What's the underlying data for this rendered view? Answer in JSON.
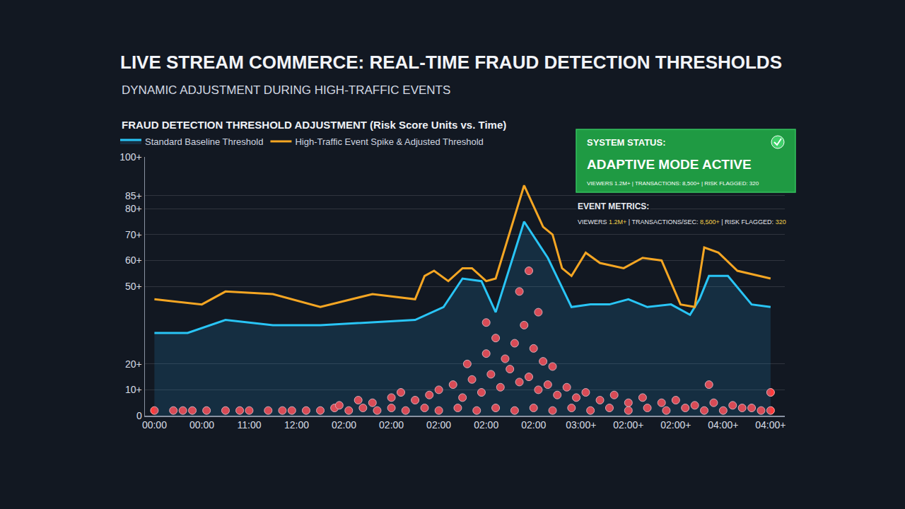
{
  "chart_data": {
    "type": "line",
    "title": "LIVE STREAM COMMERCE: REAL-TIME FRAUD DETECTION THRESHOLDS",
    "subtitle": "DYNAMIC ADJUSTMENT DURING HIGH-TRAFFIC EVENTS",
    "panel_title": "FRAUD DETECTION THRESHOLD ADJUSTMENT (Risk Score Units vs. Time)",
    "status": {
      "label": "SYSTEM STATUS:",
      "value": "ADAPTIVE MODE ACTIVE",
      "details": "VIEWERS 1.2M+ | TRANSACTIONS: 8,500+ | RISK FLAGGED: 320"
    },
    "event_metrics": {
      "label": "EVENT METRICS:",
      "details": "VIEWERS 1.2M+ | TRANSACTIONS/SEC: 8,500+ | RISK FLAGGED: 320"
    },
    "xlim": [
      -0.2,
      13.3
    ],
    "xticks": [
      {
        "value": 0,
        "label": "00:00"
      },
      {
        "value": 1,
        "label": "00:00"
      },
      {
        "value": 2,
        "label": "11:00"
      },
      {
        "value": 3,
        "label": "12:00"
      },
      {
        "value": 4,
        "label": "02:00"
      },
      {
        "value": 5,
        "label": "02:00"
      },
      {
        "value": 6,
        "label": "02:00"
      },
      {
        "value": 7,
        "label": "02:00"
      },
      {
        "value": 8,
        "label": "02:00"
      },
      {
        "value": 9,
        "label": "03:00+"
      },
      {
        "value": 10,
        "label": "02:00+"
      },
      {
        "value": 11,
        "label": "02:00+"
      },
      {
        "value": 12,
        "label": "04:00+"
      },
      {
        "value": 13,
        "label": "04:00+"
      }
    ],
    "ylim": [
      0,
      100
    ],
    "yticks": [
      0,
      {
        "value": 10,
        "label": "10+"
      },
      {
        "value": 20,
        "label": "20+"
      },
      {
        "value": 50,
        "label": "50+"
      },
      {
        "value": 60,
        "label": "60+"
      },
      {
        "value": 70,
        "label": "70+"
      },
      {
        "value": 80,
        "label": "80+"
      },
      {
        "value": 85,
        "label": "85+"
      },
      {
        "value": 100,
        "label": "100+"
      }
    ],
    "grid": true,
    "legend": "top left",
    "series": [
      {
        "name": "Standard Baseline Threshold",
        "color": "#29c5f6",
        "type": "line",
        "x": [
          0,
          0.7,
          1.5,
          2.5,
          3.5,
          4.5,
          5.5,
          6.1,
          6.5,
          6.9,
          7.2,
          7.8,
          8.3,
          8.8,
          9.2,
          9.6,
          10.0,
          10.4,
          10.9,
          11.3,
          11.5,
          11.7,
          12.1,
          12.6,
          13.0
        ],
        "values": [
          32,
          32,
          37,
          35,
          35,
          36,
          37,
          42,
          53,
          52,
          40,
          75,
          61,
          42,
          43,
          43,
          45,
          42,
          43,
          39,
          45,
          54,
          54,
          43,
          42
        ]
      },
      {
        "name": "High-Traffic Event Spike & Adjusted Threshold",
        "color": "#f5a623",
        "type": "line",
        "x": [
          0,
          1.0,
          1.5,
          2.5,
          3.5,
          4.6,
          5.5,
          5.7,
          5.9,
          6.2,
          6.5,
          6.7,
          7.0,
          7.2,
          7.8,
          8.2,
          8.4,
          8.6,
          8.8,
          9.1,
          9.4,
          9.9,
          10.3,
          10.7,
          11.1,
          11.4,
          11.6,
          11.9,
          12.3,
          13.0
        ],
        "values": [
          45,
          43,
          48,
          47,
          42,
          47,
          45,
          54,
          56,
          52,
          57,
          57,
          52,
          53,
          89,
          73,
          70,
          57,
          54,
          63,
          59,
          57,
          61,
          60,
          43,
          42,
          65,
          63,
          56,
          53
        ]
      },
      {
        "color": "#ff3b3b",
        "type": "scatter",
        "marker": "circle",
        "x": [
          0,
          0.4,
          0.6,
          0.8,
          1.1,
          1.5,
          1.8,
          2.0,
          2.4,
          2.7,
          2.9,
          3.2,
          3.5,
          3.8,
          4.1,
          4.4,
          4.7,
          5.0,
          5.3,
          5.7,
          6.0,
          6.4,
          6.8,
          7.2,
          7.6,
          8.0,
          8.4,
          8.8,
          9.2,
          9.6,
          10.0,
          10.4,
          10.8,
          11.2,
          11.6,
          12.0,
          12.4,
          12.8,
          13.0,
          3.9,
          4.3,
          4.6,
          5.0,
          5.2,
          5.5,
          5.8,
          6.0,
          6.3,
          6.5,
          6.7,
          6.9,
          7.1,
          7.3,
          7.5,
          7.7,
          7.9,
          8.1,
          8.3,
          8.5,
          8.7,
          8.9,
          9.1,
          9.4,
          9.7,
          10.0,
          10.3,
          10.7,
          11.0,
          11.4,
          11.8,
          12.2,
          12.6,
          13.0,
          6.6,
          7.0,
          7.2,
          7.4,
          7.6,
          7.8,
          8.0,
          8.2,
          8.4,
          7.0,
          7.7,
          7.9,
          8.1,
          11.7
        ],
        "values": [
          2,
          2,
          2,
          2,
          2,
          2,
          2,
          2,
          2,
          2,
          2,
          2,
          2,
          3,
          2,
          3,
          2,
          3,
          2,
          3,
          2,
          3,
          2,
          3,
          2,
          3,
          2,
          3,
          2,
          3,
          2,
          3,
          2,
          3,
          2,
          2,
          3,
          2,
          2,
          4,
          6,
          5,
          7,
          9,
          6,
          8,
          10,
          12,
          7,
          14,
          9,
          16,
          11,
          18,
          13,
          15,
          10,
          12,
          8,
          11,
          7,
          9,
          6,
          8,
          5,
          7,
          5,
          6,
          4,
          5,
          4,
          3,
          9,
          20,
          24,
          30,
          22,
          28,
          35,
          26,
          21,
          19,
          36,
          48,
          56,
          40,
          12
        ]
      }
    ]
  }
}
